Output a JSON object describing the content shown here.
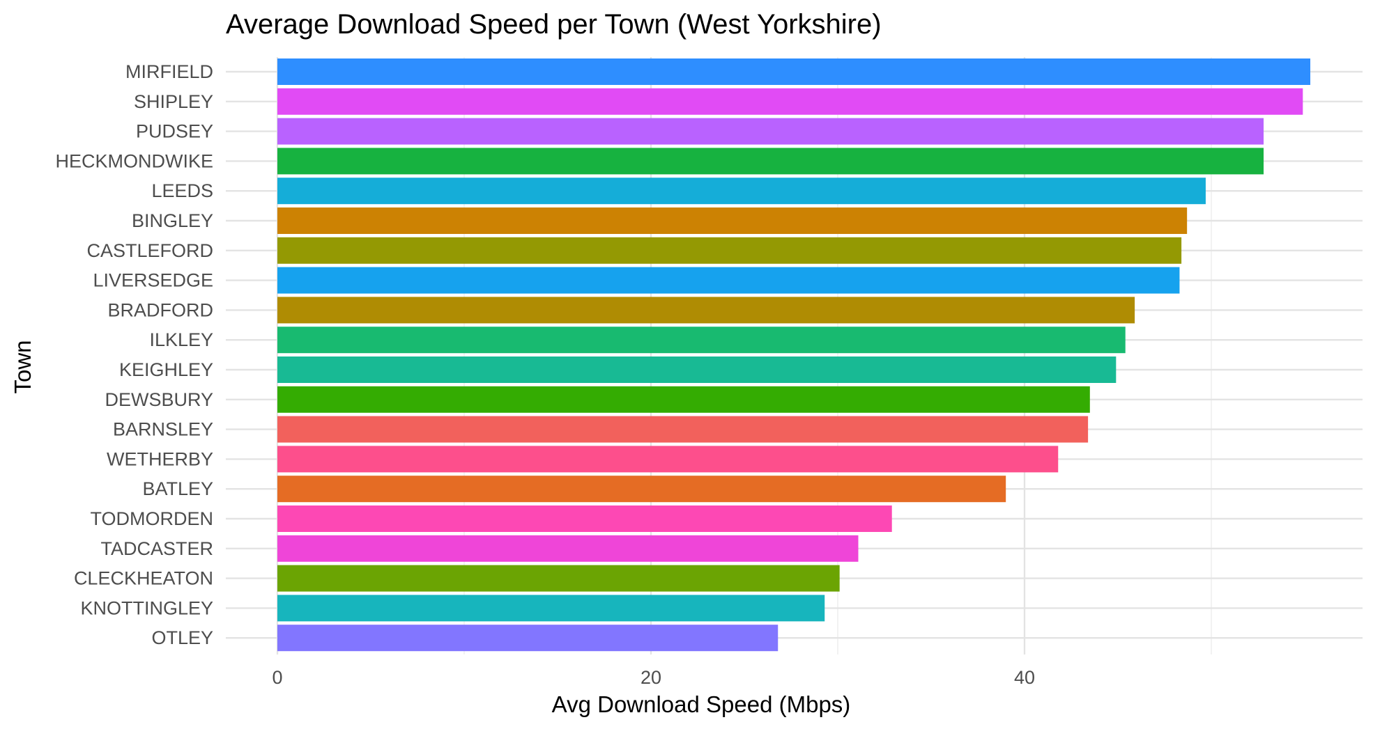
{
  "chart_data": {
    "type": "bar",
    "orientation": "horizontal",
    "title": "Average Download Speed per Town (West Yorkshire)",
    "xlabel": "Avg Download Speed (Mbps)",
    "ylabel": "Town",
    "xlim": [
      0,
      56
    ],
    "x_ticks": [
      0,
      20,
      40
    ],
    "x_minor_ticks": [
      10,
      30,
      50
    ],
    "grid": true,
    "legend": "none",
    "categories": [
      "MIRFIELD",
      "SHIPLEY",
      "PUDSEY",
      "HECKMONDWIKE",
      "LEEDS",
      "BINGLEY",
      "CASTLEFORD",
      "LIVERSEDGE",
      "BRADFORD",
      "ILKLEY",
      "KEIGHLEY",
      "DEWSBURY",
      "BARNSLEY",
      "WETHERBY",
      "BATLEY",
      "TODMORDEN",
      "TADCASTER",
      "CLECKHEATON",
      "KNOTTINGLEY",
      "OTLEY"
    ],
    "values": [
      55.3,
      54.9,
      52.8,
      52.8,
      49.7,
      48.7,
      48.4,
      48.3,
      45.9,
      45.4,
      44.9,
      43.5,
      43.4,
      41.8,
      39.0,
      32.9,
      31.1,
      30.1,
      29.3,
      26.8
    ],
    "colors": [
      "#2E8EFF",
      "#E14BF5",
      "#B962FF",
      "#17B240",
      "#15ADD8",
      "#CC8203",
      "#949903",
      "#16A2EE",
      "#AF8C03",
      "#18BA70",
      "#18BA94",
      "#34AC02",
      "#F2615C",
      "#FD4F8C",
      "#E56C24",
      "#FD48B4",
      "#EF45D8",
      "#6BA403",
      "#17B5BD",
      "#8276FF"
    ]
  }
}
